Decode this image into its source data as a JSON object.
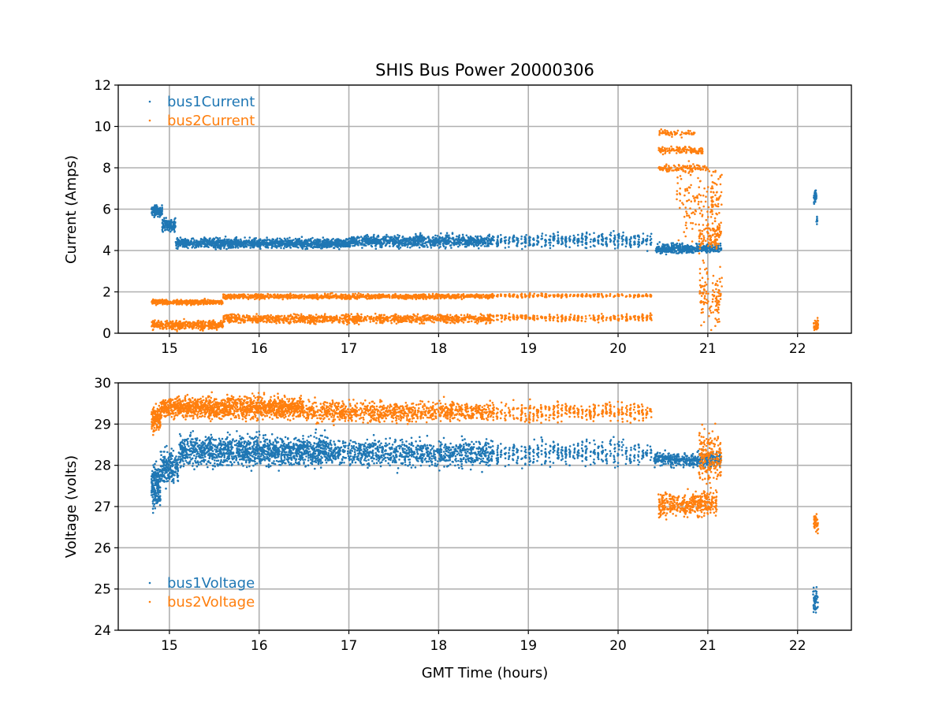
{
  "chart_data": [
    {
      "type": "scatter",
      "title": "SHIS Bus Power 20000306",
      "xlabel": "",
      "ylabel": "Current (Amps)",
      "xlim": [
        14.43,
        22.6
      ],
      "ylim": [
        0,
        12
      ],
      "xticks": [
        "15",
        "16",
        "17",
        "18",
        "19",
        "20",
        "21",
        "22"
      ],
      "yticks": [
        "0",
        "2",
        "4",
        "6",
        "8",
        "10",
        "12"
      ],
      "grid": true,
      "legend_position": "top-left",
      "series": [
        {
          "name": "bus1Current",
          "color": "#1f77b4",
          "segments": [
            {
              "x": [
                14.8,
                14.92
              ],
              "y": 5.9,
              "spread": 0.18,
              "n": 120
            },
            {
              "x": [
                14.92,
                15.07
              ],
              "y": 5.25,
              "spread": 0.22,
              "n": 120
            },
            {
              "x": [
                15.07,
                17.0
              ],
              "y": 4.35,
              "spread": 0.16,
              "n": 1300
            },
            {
              "x": [
                17.0,
                18.6
              ],
              "y": 4.45,
              "spread": 0.2,
              "n": 900
            },
            {
              "x": [
                18.6,
                20.4
              ],
              "y": 4.5,
              "spread": 0.25,
              "n": 420,
              "gappy": true
            },
            {
              "x": [
                20.42,
                21.15
              ],
              "y": 4.1,
              "spread": 0.15,
              "n": 450
            },
            {
              "x": [
                22.18,
                22.21
              ],
              "y": 6.6,
              "spread": 0.25,
              "n": 40
            },
            {
              "x": [
                22.21,
                22.23
              ],
              "y": 5.5,
              "spread": 0.2,
              "n": 8
            }
          ]
        },
        {
          "name": "bus2Current",
          "color": "#ff7f0e",
          "segments": [
            {
              "x": [
                14.8,
                15.6
              ],
              "y": 1.5,
              "spread": 0.08,
              "n": 400
            },
            {
              "x": [
                15.6,
                18.6
              ],
              "y": 1.78,
              "spread": 0.08,
              "n": 1100
            },
            {
              "x": [
                18.6,
                20.4
              ],
              "y": 1.82,
              "spread": 0.06,
              "n": 300,
              "gappy": true
            },
            {
              "x": [
                14.8,
                15.6
              ],
              "y": 0.4,
              "spread": 0.15,
              "n": 400
            },
            {
              "x": [
                15.6,
                18.6
              ],
              "y": 0.7,
              "spread": 0.15,
              "n": 1100
            },
            {
              "x": [
                18.6,
                20.4
              ],
              "y": 0.75,
              "spread": 0.12,
              "n": 300,
              "gappy": true
            },
            {
              "x": [
                20.45,
                20.85
              ],
              "y": 9.7,
              "spread": 0.12,
              "n": 60,
              "gappy": true
            },
            {
              "x": [
                20.45,
                20.95
              ],
              "y": 8.85,
              "spread": 0.12,
              "n": 120
            },
            {
              "x": [
                20.45,
                21.0
              ],
              "y": 8.0,
              "spread": 0.12,
              "n": 100
            },
            {
              "x": [
                20.65,
                21.15
              ],
              "y": 6.5,
              "spread": 1.2,
              "n": 150,
              "gappy": true
            },
            {
              "x": [
                20.9,
                21.15
              ],
              "y": 4.8,
              "spread": 0.5,
              "n": 120
            },
            {
              "x": [
                20.9,
                21.15
              ],
              "y": 1.8,
              "spread": 1.1,
              "n": 120,
              "gappy": true
            },
            {
              "x": [
                22.18,
                22.23
              ],
              "y": 0.4,
              "spread": 0.18,
              "n": 40
            }
          ]
        }
      ]
    },
    {
      "type": "scatter",
      "xlabel": "GMT Time (hours)",
      "ylabel": "Voltage (volts)",
      "xlim": [
        14.43,
        22.6
      ],
      "ylim": [
        24,
        30
      ],
      "xticks": [
        "15",
        "16",
        "17",
        "18",
        "19",
        "20",
        "21",
        "22"
      ],
      "yticks": [
        "24",
        "25",
        "26",
        "27",
        "28",
        "29",
        "30"
      ],
      "grid": true,
      "legend_position": "bottom-left",
      "series": [
        {
          "name": "bus1Voltage",
          "color": "#1f77b4",
          "segments": [
            {
              "x": [
                14.8,
                14.9
              ],
              "y": 27.5,
              "spread": 0.35,
              "n": 200
            },
            {
              "x": [
                14.9,
                15.1
              ],
              "y": 27.95,
              "spread": 0.3,
              "n": 200
            },
            {
              "x": [
                15.1,
                16.8
              ],
              "y": 28.35,
              "spread": 0.25,
              "n": 1400
            },
            {
              "x": [
                16.8,
                18.6
              ],
              "y": 28.3,
              "spread": 0.22,
              "n": 900
            },
            {
              "x": [
                18.6,
                20.4
              ],
              "y": 28.3,
              "spread": 0.22,
              "n": 420,
              "gappy": true
            },
            {
              "x": [
                20.4,
                21.15
              ],
              "y": 28.15,
              "spread": 0.12,
              "n": 400
            },
            {
              "x": [
                22.17,
                22.23
              ],
              "y": 24.7,
              "spread": 0.25,
              "n": 50
            }
          ]
        },
        {
          "name": "bus2Voltage",
          "color": "#ff7f0e",
          "segments": [
            {
              "x": [
                14.8,
                14.9
              ],
              "y": 29.1,
              "spread": 0.2,
              "n": 150
            },
            {
              "x": [
                14.9,
                16.5
              ],
              "y": 29.4,
              "spread": 0.18,
              "n": 1400
            },
            {
              "x": [
                16.5,
                18.6
              ],
              "y": 29.3,
              "spread": 0.17,
              "n": 900
            },
            {
              "x": [
                18.6,
                20.4
              ],
              "y": 29.3,
              "spread": 0.17,
              "n": 420,
              "gappy": true
            },
            {
              "x": [
                20.45,
                21.1
              ],
              "y": 27.05,
              "spread": 0.2,
              "n": 400
            },
            {
              "x": [
                20.9,
                21.15
              ],
              "y": 28.2,
              "spread": 0.5,
              "n": 200
            },
            {
              "x": [
                22.18,
                22.23
              ],
              "y": 26.6,
              "spread": 0.15,
              "n": 40
            }
          ]
        }
      ]
    }
  ]
}
